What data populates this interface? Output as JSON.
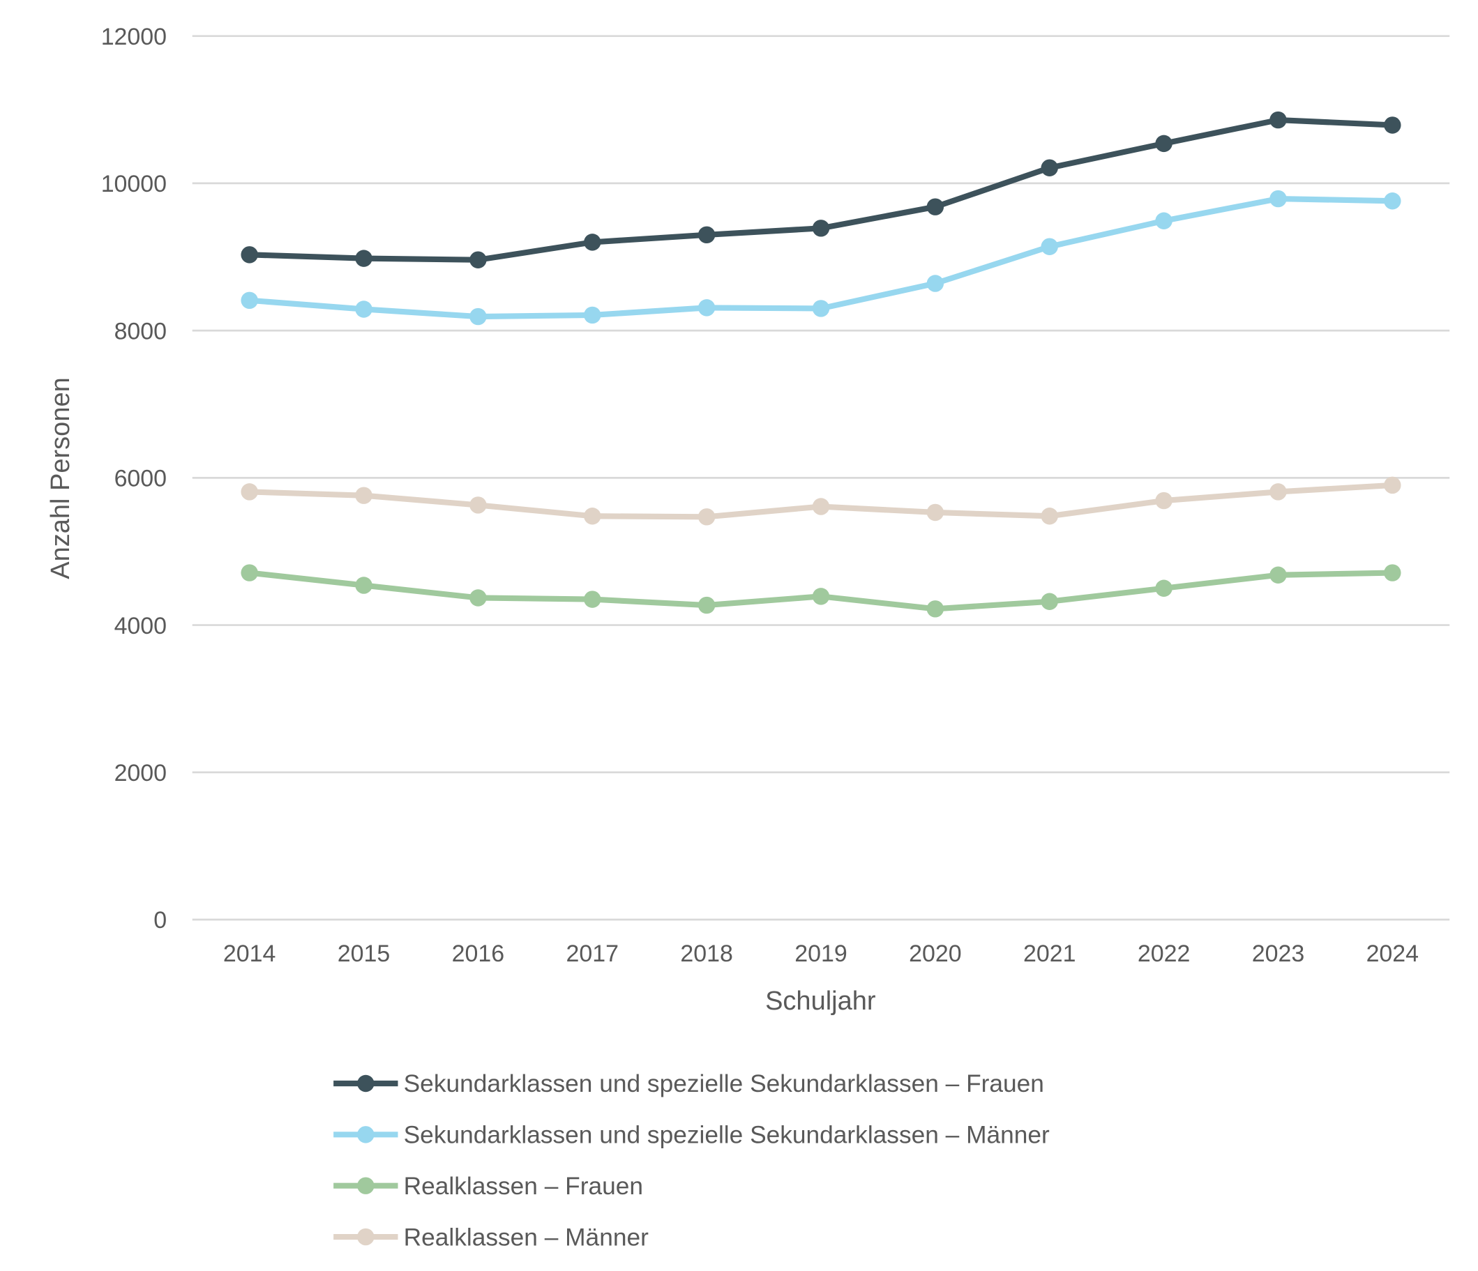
{
  "chart_data": {
    "type": "line",
    "title": "",
    "xlabel": "Schuljahr",
    "ylabel": "Anzahl Personen",
    "ylim": [
      0,
      12000
    ],
    "yticks": [
      0,
      2000,
      4000,
      6000,
      8000,
      10000,
      12000
    ],
    "grid": true,
    "legend_position": "bottom",
    "categories": [
      "2014",
      "2015",
      "2016",
      "2017",
      "2018",
      "2019",
      "2020",
      "2021",
      "2022",
      "2023",
      "2024"
    ],
    "series": [
      {
        "name": "Sekundarklassen und spezielle Sekundarklassen – Frauen",
        "color": "#3d525b",
        "values": [
          9030,
          8980,
          8960,
          9200,
          9300,
          9390,
          9680,
          10210,
          10540,
          10860,
          10790
        ]
      },
      {
        "name": "Sekundarklassen und spezielle Sekundarklassen – Männer",
        "color": "#97d7ef",
        "values": [
          8410,
          8290,
          8190,
          8210,
          8310,
          8300,
          8640,
          9140,
          9490,
          9790,
          9760
        ]
      },
      {
        "name": "Realklassen – Frauen",
        "color": "#a0c99d",
        "values": [
          4710,
          4540,
          4370,
          4350,
          4270,
          4390,
          4220,
          4320,
          4500,
          4680,
          4710
        ]
      },
      {
        "name": "Realklassen – Männer",
        "color": "#e0d3c7",
        "values": [
          5810,
          5760,
          5630,
          5480,
          5470,
          5610,
          5530,
          5480,
          5690,
          5810,
          5900
        ]
      }
    ]
  }
}
